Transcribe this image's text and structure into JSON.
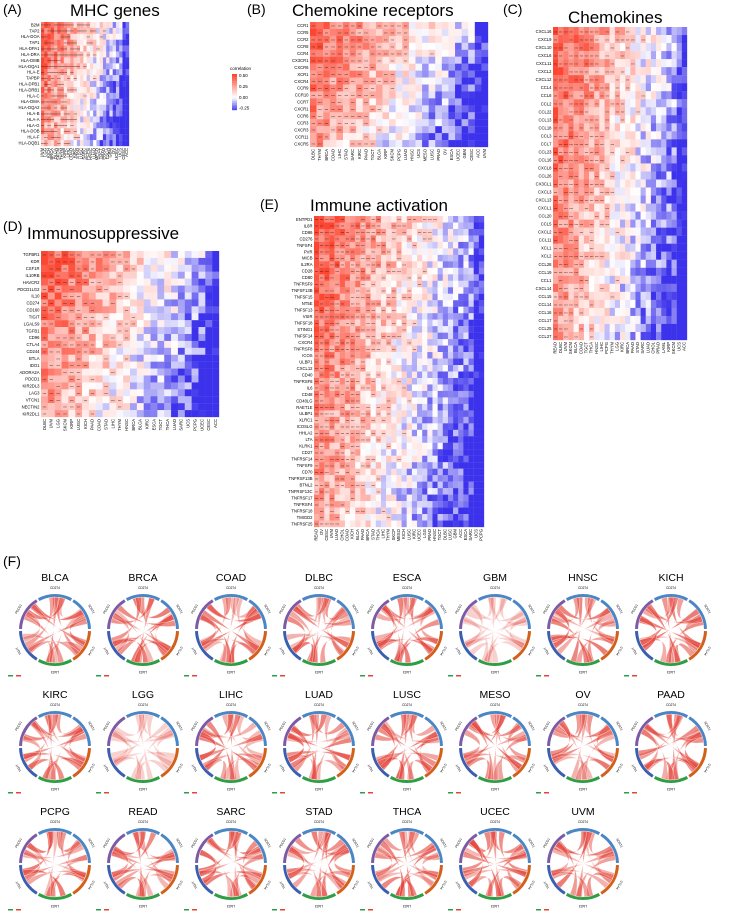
{
  "panel_labels": {
    "a": "(A)",
    "b": "(B)",
    "c": "(C)",
    "d": "(D)",
    "e": "(E)",
    "f": "(F)"
  },
  "chart_data": [
    {
      "type": "heatmap",
      "id": "A",
      "title": "MHC genes",
      "rows": [
        "B2M",
        "TAP2",
        "HLA-DOA",
        "TAP1",
        "HLA-DPA1",
        "HLA-DRA",
        "HLA-DMB",
        "HLA-DQA1",
        "HLA-E",
        "TAPBP",
        "HLA-DPB1",
        "HLA-DRB1",
        "HLA-C",
        "HLA-DMA",
        "HLA-DQA2",
        "HLA-B",
        "HLA-A",
        "HLA-G",
        "HLA-DOB",
        "HLA-F",
        "HLA-DQB1"
      ],
      "columns": [
        "UVM",
        "LGG",
        "KICH",
        "BRCA",
        "BLCA",
        "SKCM",
        "THYM",
        "KIRP",
        "LIHC",
        "COAD",
        "KIRC",
        "STAD",
        "LUSC",
        "SARC",
        "PCPG",
        "HNSC",
        "LUAD",
        "MESO",
        "TGCT",
        "PRAD",
        "ESCA",
        "GBM",
        "OV",
        "UCEC",
        "UCS",
        "CESC",
        "ACC"
      ],
      "legend": {
        "title": "correlation",
        "ticks": [
          "0.50",
          "0.25",
          "0.00",
          "-0.25"
        ]
      },
      "value_range": [
        -0.35,
        0.6
      ]
    },
    {
      "type": "heatmap",
      "id": "B",
      "title": "Chemokine receptors",
      "rows": [
        "CCR1",
        "CCR5",
        "CCR2",
        "CCR8",
        "CCR4",
        "CX3CR1",
        "CXCR6",
        "XCR1",
        "CXCR4",
        "CCR9",
        "CCR10",
        "CCR7",
        "CXCR1",
        "CCR6",
        "CCR3",
        "CXCR3",
        "CCR11",
        "CXCR5"
      ],
      "columns": [
        "DLBC",
        "THYM",
        "BRCA",
        "COAD",
        "LIHC",
        "STAD",
        "SARC",
        "KIRC",
        "PAAD",
        "TGCT",
        "BLCA",
        "KIRP",
        "SKCM",
        "PCPG",
        "LUAD",
        "HNSC",
        "UCS",
        "MESO",
        "LUSC",
        "PRAD",
        "OV",
        "ESCA",
        "UCEC",
        "GBM",
        "CESC",
        "ACC",
        "UVM"
      ],
      "value_range": [
        -0.35,
        0.6
      ]
    },
    {
      "type": "heatmap",
      "id": "C",
      "title": "Chemokines",
      "rows": [
        "CXCL16",
        "CXCL9",
        "CXCL10",
        "CXCL6",
        "CXCL11",
        "CXCL2",
        "CXCL12",
        "CCL4",
        "CCL8",
        "CCL2",
        "CCL22",
        "CCL13",
        "CCL18",
        "CCL3",
        "CCL7",
        "CCL23",
        "CCL16",
        "CXCL8",
        "CCL26",
        "CX3CL1",
        "CXCL3",
        "CXCL13",
        "CXCL1",
        "CCL20",
        "CCL5",
        "CXCL2",
        "CCL11",
        "XCL1",
        "XCL2",
        "CCL28",
        "CCL19",
        "CCL1",
        "CXCL14",
        "CCL15",
        "CCL14",
        "CCL16",
        "CCL17",
        "CCL25",
        "CCL27"
      ],
      "columns": [
        "READ",
        "DLBC",
        "UVM",
        "SKCM",
        "BLCA",
        "COAD",
        "TGCT",
        "THCA",
        "HNSC",
        "LIHC",
        "PCPG",
        "THYM",
        "LGG",
        "KIRC",
        "BRCA",
        "PAAD",
        "STAD",
        "SARC",
        "LUAD",
        "CHOL",
        "PRAD",
        "LAML",
        "KIRP",
        "SKCM",
        "UCS",
        "ACC"
      ],
      "value_range": [
        -0.35,
        0.6
      ]
    },
    {
      "type": "heatmap",
      "id": "D",
      "title": "Immunosuppressive",
      "rows": [
        "TGFBR1",
        "KDR",
        "CSF1R",
        "IL10RB",
        "HAVCR2",
        "PDCD1LG2",
        "IL10",
        "CD274",
        "CD160",
        "TIGIT",
        "LGALS9",
        "TGFB1",
        "CD96",
        "CTLA4",
        "CD244",
        "BTLA",
        "IDO1",
        "ADORA2A",
        "PDCD1",
        "KIR2DL3",
        "LAG3",
        "VTCN1",
        "NECTIN2",
        "KIR2DL1"
      ],
      "columns": [
        "DLBC",
        "UVM",
        "LGG",
        "SKCM",
        "KIRP",
        "LUSC",
        "KICH",
        "PAAD",
        "COAD",
        "STAD",
        "LIHC",
        "THYM",
        "HNSC",
        "BRCA",
        "BLCA",
        "KIRC",
        "ESCA",
        "TGCT",
        "THCA",
        "LUAD",
        "SARC",
        "UCS",
        "PCPG",
        "UCEC",
        "CESC",
        "ACC"
      ],
      "value_range": [
        -0.35,
        0.6
      ]
    },
    {
      "type": "heatmap",
      "id": "E",
      "title": "Immune activation",
      "rows": [
        "ENTPD1",
        "IL6R",
        "CD86",
        "CD276",
        "TNFSF4",
        "PVR",
        "MICB",
        "IL2RA",
        "CD28",
        "CD80",
        "TNFRSF9",
        "TNFSF13B",
        "TNFSF15",
        "NT5E",
        "TNFSF13",
        "VSIR",
        "TNFSF18",
        "STING1",
        "TNFSF14",
        "CXCR4",
        "TNFRSF8",
        "ICOS",
        "ULBP1",
        "CXCL12",
        "CD40",
        "TNFRSF8",
        "IL6",
        "CD48",
        "CD40LG",
        "RAET1E",
        "ULBP1",
        "XLRC1",
        "ICOSLG",
        "HHLA2",
        "LTA",
        "KLRK1",
        "CD27",
        "TNFRSF14",
        "TNFSF9",
        "CD70",
        "TNFRSF13B",
        "BTNL2",
        "TNFRSF13C",
        "TNFRSF17",
        "TNFRSF4",
        "TNFRSF18",
        "TMIGD2",
        "TNFRSF25"
      ],
      "columns": [
        "READ",
        "OV",
        "CESC",
        "UVM",
        "LUAD",
        "CHOL",
        "COAD",
        "KICH",
        "BLCA",
        "PAAD",
        "BRCA",
        "STAD",
        "THCA",
        "LIHC",
        "THYM",
        "SKCP",
        "MESO",
        "KICH",
        "LUSC",
        "KIRC",
        "UCEC",
        "LGG",
        "PRAD",
        "HNSC",
        "TGCT",
        "DLBC",
        "LUSC",
        "GBM",
        "ACC",
        "ESCA",
        "SARC",
        "UCS",
        "PCPG"
      ],
      "value_range": [
        -0.35,
        0.6
      ]
    },
    {
      "type": "chord",
      "id": "F",
      "genes": [
        "CD274",
        "SOAT1",
        "CTLA4",
        "LAG3",
        "TIGIT",
        "PDCD1"
      ],
      "gene_colors": [
        "#4a86c5",
        "#4a86c5",
        "#d2601a",
        "#2e9e44",
        "#3a5fb0",
        "#7b5aa6"
      ],
      "cancers": [
        "BLCA",
        "BRCA",
        "COAD",
        "DLBC",
        "ESCA",
        "GBM",
        "HNSC",
        "KICH",
        "KIRC",
        "LGG",
        "LIHC",
        "LUAD",
        "LUSC",
        "MESO",
        "OV",
        "PAAD",
        "PCPG",
        "READ",
        "SARC",
        "STAD",
        "THCA",
        "UCEC",
        "UVM"
      ]
    }
  ]
}
